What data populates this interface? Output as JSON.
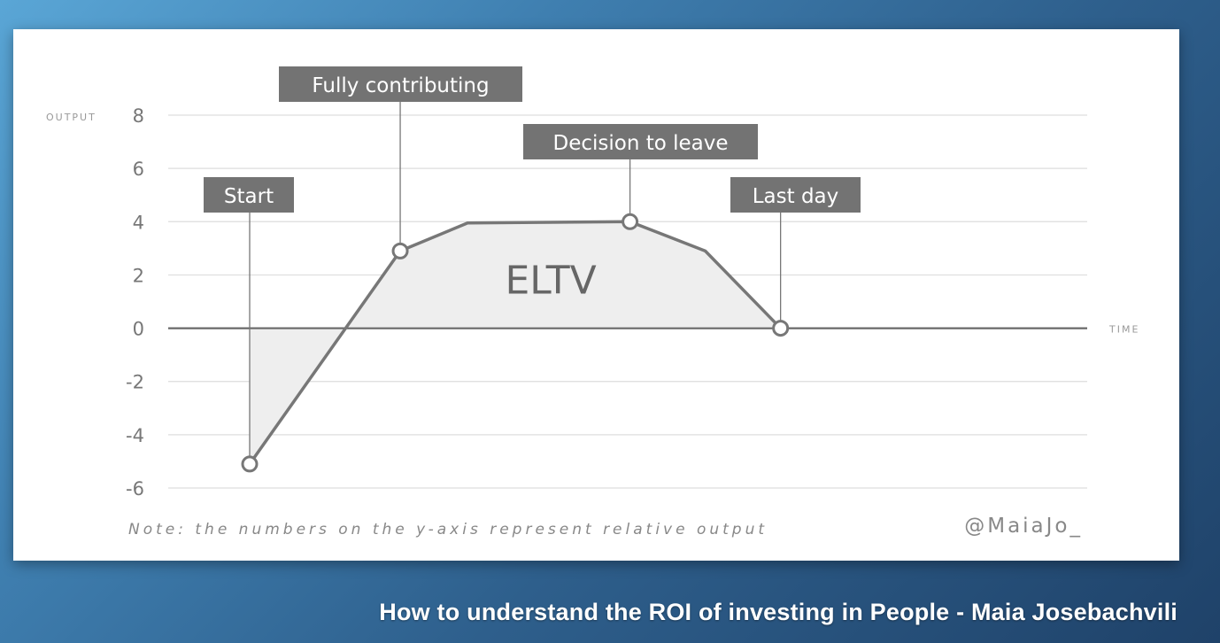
{
  "caption": "How to understand the ROI of investing in People - Maia Josebachvili",
  "chart_data": {
    "type": "area",
    "ylabel": "OUTPUT",
    "xlabel": "TIME",
    "ylim": [
      -6,
      8
    ],
    "yticks": [
      8,
      6,
      4,
      2,
      0,
      -2,
      -4,
      -6
    ],
    "points": [
      {
        "t": 0,
        "y": -5.1
      },
      {
        "t": 1.9,
        "y": 2.9
      },
      {
        "t": 2.75,
        "y": 3.95
      },
      {
        "t": 4.8,
        "y": 4.0
      },
      {
        "t": 5.75,
        "y": 2.9
      },
      {
        "t": 6.7,
        "y": 0
      }
    ],
    "markers": [
      {
        "t": 0,
        "y": -5.1,
        "label": "Start"
      },
      {
        "t": 1.9,
        "y": 2.9,
        "label": "Fully contributing"
      },
      {
        "t": 4.8,
        "y": 4.0,
        "label": "Decision to leave"
      },
      {
        "t": 6.7,
        "y": 0,
        "label": "Last day"
      }
    ],
    "area_label": "ELTV",
    "note": "Note: the numbers on the y-axis represent relative output",
    "credit": "@MaiaJo_"
  }
}
